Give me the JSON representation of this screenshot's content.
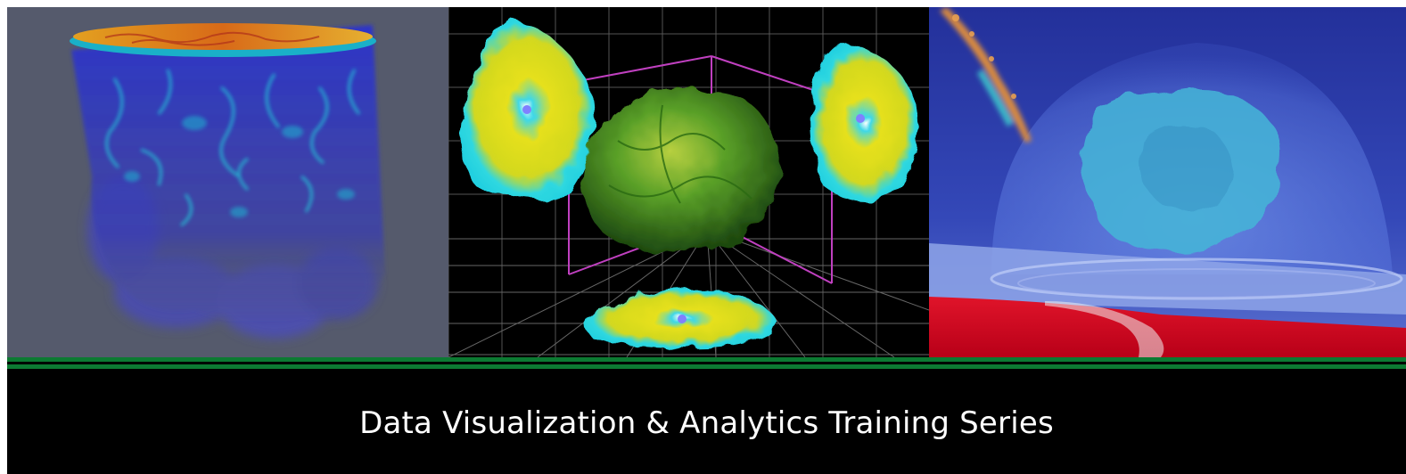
{
  "banner": {
    "title": "Data Visualization & Analytics Training Series",
    "accent_color": "#0c7a32",
    "background_color": "#000000"
  },
  "panels": [
    {
      "subject": "volume-rendered-fluid-column",
      "background": "#555a6c"
    },
    {
      "subject": "3d-volume-with-orthogonal-slice-projections",
      "background": "#000000"
    },
    {
      "subject": "transparent-dome-simulation",
      "background": "#2a3a9a"
    }
  ]
}
